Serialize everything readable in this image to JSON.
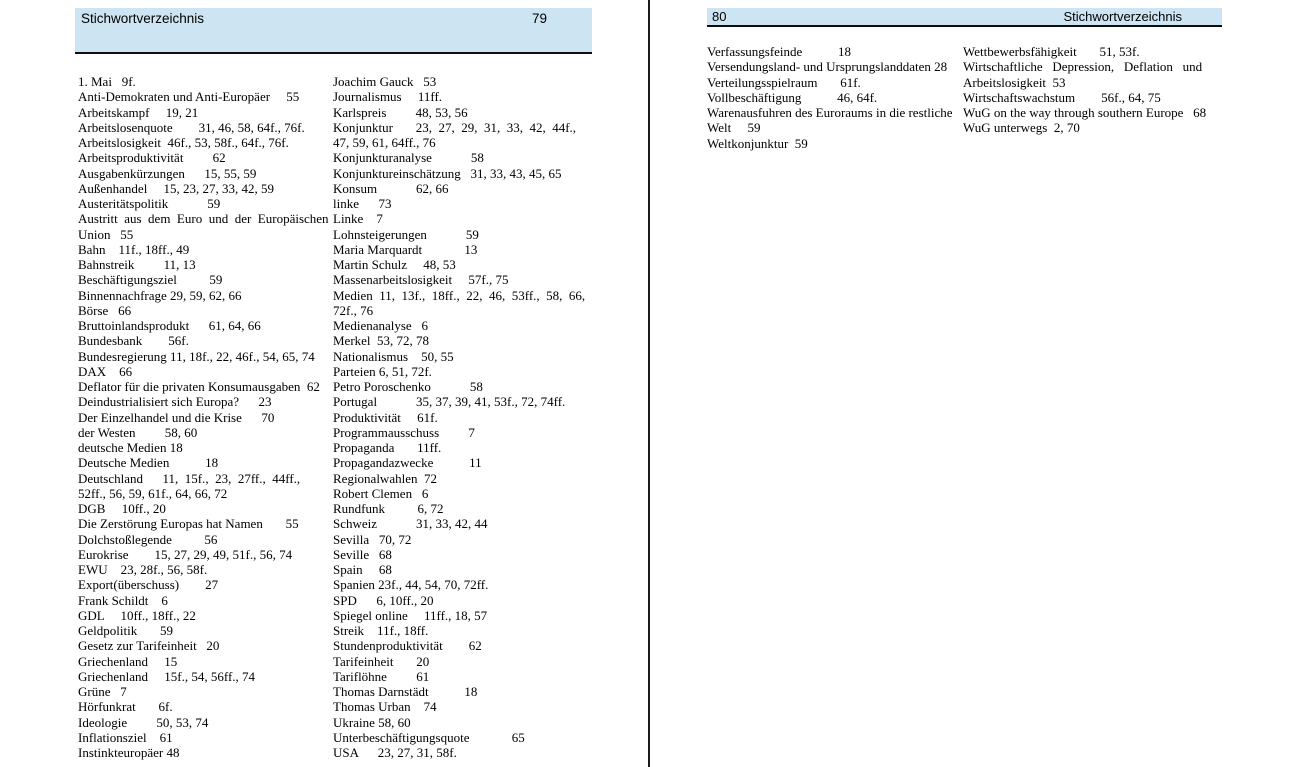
{
  "colors": {
    "header_bg": "#cde4f2",
    "header_rule": "#0d0d0d",
    "divider": "#1a1a1a",
    "text": "#000000"
  },
  "pages": {
    "left": {
      "page_number": "79",
      "header_title": "Stichwortverzeichnis",
      "columns": {
        "col1": [
          "1. Mai   9f.",
          "Anti-Demokraten und Anti-Europäer     55",
          "Arbeitskampf     19, 21",
          "Arbeitslosenquote        31, 46, 58, 64f., 76f.",
          "Arbeitslosigkeit  46f., 53, 58f., 64f., 76f.",
          "Arbeitsproduktivität         62",
          "Ausgabenkürzungen      15, 55, 59",
          "Außenhandel     15, 23, 27, 33, 42, 59",
          "Austeritätspolitik            59",
          "Austritt  aus  dem  Euro  und  der  Europäischen",
          "Union   55",
          "Bahn    11f., 18ff., 49",
          "Bahnstreik         11, 13",
          "Beschäftigungsziel          59",
          "Binnennachfrage 29, 59, 62, 66",
          "Börse   66",
          "Bruttoinlandsprodukt      61, 64, 66",
          "Bundesbank        56f.",
          "Bundesregierung 11, 18f., 22, 46f., 54, 65, 74",
          "DAX    66",
          "Deflator für die privaten Konsumausgaben  62",
          "Deindustrialisiert sich Europa?      23",
          "Der Einzelhandel und die Krise      70",
          "der Westen         58, 60",
          "deutsche Medien 18",
          "Deutsche Medien           18",
          "Deutschland      11,  15f.,  23,  27ff.,  44ff.,",
          "52ff., 56, 59, 61f., 64, 66, 72",
          "DGB     10ff., 20",
          "Die Zerstörung Europas hat Namen       55",
          "Dolchstoßlegende          56",
          "Eurokrise        15, 27, 29, 49, 51f., 56, 74",
          "EWU    23, 28f., 56, 58f.",
          "Export(überschuss)        27",
          "Frank Schildt    6",
          "GDL     10ff., 18ff., 22",
          "Geldpolitik       59",
          "Gesetz zur Tarifeinheit   20",
          "Griechenland     15",
          "Griechenland     15f., 54, 56ff., 74",
          "Grüne   7",
          "Hörfunkrat       6f.",
          "Ideologie         50, 53, 74",
          "Inflationsziel    61",
          "Instinkteuropäer 48"
        ],
        "col2": [
          "Joachim Gauck   53",
          "Journalismus     11ff.",
          "Karlspreis         48, 53, 56",
          "Konjunktur       23,  27,  29,  31,  33,  42,  44f.,",
          "47, 59, 61, 64ff., 76",
          "Konjunkturanalyse            58",
          "Konjunktureinschätzung   31, 33, 43, 45, 65",
          "Konsum            62, 66",
          "linke      73",
          "Linke    7",
          "Lohnsteigerungen            59",
          "Maria Marquardt             13",
          "Martin Schulz     48, 53",
          "Massenarbeitslosigkeit     57f., 75",
          "Medien  11,  13f.,  18ff.,  22,  46,  53ff.,  58,  66,",
          "72f., 76",
          "Medienanalyse   6",
          "Merkel  53, 72, 78",
          "Nationalismus    50, 55",
          "Parteien 6, 51, 72f.",
          "Petro Poroschenko            58",
          "Portugal            35, 37, 39, 41, 53f., 72, 74ff.",
          "Produktivität     61f.",
          "Programmausschuss         7",
          "Propaganda       11ff.",
          "Propagandazwecke           11",
          "Regionalwahlen  72",
          "Robert Clemen   6",
          "Rundfunk          6, 72",
          "Schweiz            31, 33, 42, 44",
          "Sevilla   70, 72",
          "Seville   68",
          "Spain     68",
          "Spanien 23f., 44, 54, 70, 72ff.",
          "SPD      6, 10ff., 20",
          "Spiegel online     11ff., 18, 57",
          "Streik    11f., 18ff.",
          "Stundenproduktivität        62",
          "Tarifeinheit       20",
          "Tariflöhne         61",
          "Thomas Darnstädt           18",
          "Thomas Urban    74",
          "Ukraine 58, 60",
          "Unterbeschäftigungsquote             65",
          "USA      23, 27, 31, 58f."
        ]
      }
    },
    "right": {
      "page_number": "80",
      "header_title": "Stichwortverzeichnis",
      "columns": {
        "col1": [
          "Verfassungsfeinde           18",
          "Versendungsland- und Ursprungslanddaten 28",
          "Verteilungsspielraum       61f.",
          "Vollbeschäftigung           46, 64f.",
          "Warenausfuhren des Euroraums in die restliche",
          "Welt     59",
          "Weltkonjunktur  59"
        ],
        "col2": [
          "Wettbewerbsfähigkeit       51, 53f.",
          "Wirtschaftliche   Depression,   Deflation   und",
          "Arbeitslosigkeit  53",
          "Wirtschaftswachstum        56f., 64, 75",
          "WuG on the way through southern Europe   68",
          "WuG unterwegs  2, 70"
        ]
      }
    }
  }
}
